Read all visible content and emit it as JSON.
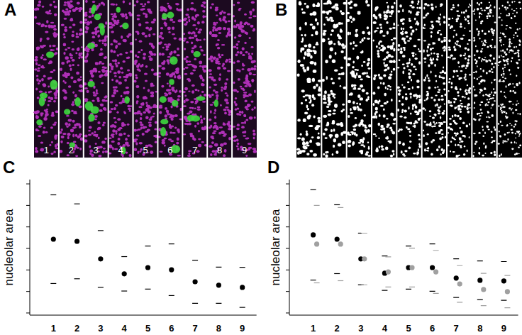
{
  "images": [
    {
      "title": "A",
      "lane_labels": [
        "1",
        "2",
        "3",
        "4",
        "5",
        "6",
        "7",
        "8",
        "9"
      ]
    },
    {
      "title": "B"
    }
  ],
  "chart_data": [
    {
      "type": "scatter",
      "title": "C",
      "ylabel": "nucleolar area",
      "categories": [
        "1",
        "2",
        "3",
        "4",
        "5",
        "6",
        "7",
        "8",
        "9"
      ],
      "ylim": [
        -0.1,
        6.2
      ],
      "yticks": [
        0,
        1,
        2,
        3,
        4,
        5,
        6
      ],
      "tick_labels": "x",
      "series": [
        {
          "color": "#000000",
          "marker": "circle",
          "values": [
            3.43,
            3.33,
            2.51,
            1.82,
            2.11,
            2.01,
            1.45,
            1.29,
            1.19
          ],
          "errors": [
            2.06,
            1.74,
            1.32,
            0.8,
            1.0,
            1.2,
            1.0,
            0.84,
            0.93
          ]
        }
      ]
    },
    {
      "type": "scatter",
      "title": "D",
      "ylabel": "nucleolar area",
      "categories": [
        "1",
        "2",
        "3",
        "4",
        "5",
        "6",
        "7",
        "8",
        "9"
      ],
      "ylim": [
        -0.1,
        6.2
      ],
      "yticks": [
        0,
        1,
        2,
        3,
        4,
        5,
        6
      ],
      "tick_labels": "x",
      "series": [
        {
          "color": "#000000",
          "marker": "circle",
          "values": [
            3.63,
            3.43,
            2.51,
            1.85,
            2.11,
            2.11,
            1.62,
            1.52,
            1.49
          ],
          "errors": [
            2.1,
            1.6,
            1.2,
            0.8,
            1.0,
            1.1,
            0.9,
            0.9,
            0.9
          ]
        },
        {
          "color": "#a0a0a0",
          "marker": "circle",
          "values": [
            3.2,
            3.2,
            2.51,
            1.91,
            2.11,
            1.91,
            1.35,
            1.09,
            0.99
          ],
          "errors": [
            1.8,
            1.7,
            1.2,
            0.7,
            0.9,
            1.0,
            0.85,
            0.75,
            0.75
          ]
        }
      ]
    }
  ]
}
